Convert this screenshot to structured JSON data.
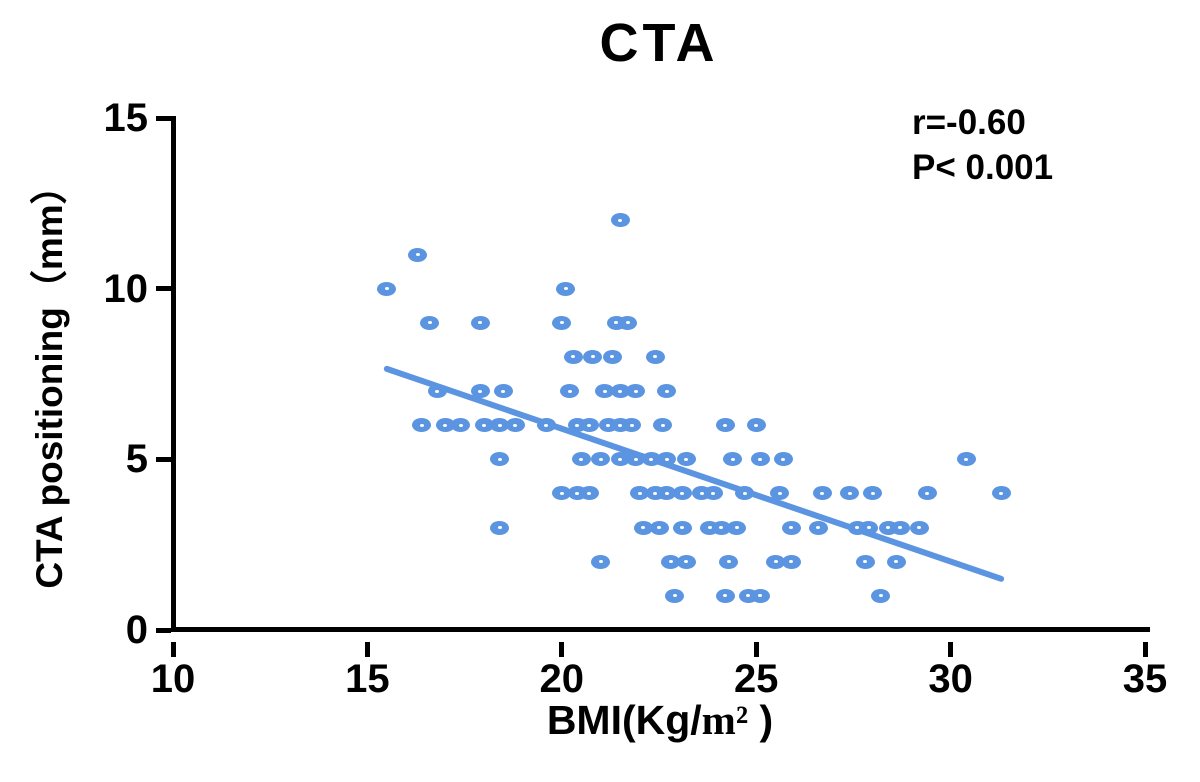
{
  "figure": {
    "background": "#ffffff"
  },
  "chart_data": {
    "type": "scatter",
    "title": "CTA",
    "xlabel": "BMI(Kg/m² )",
    "xlabel_parts": {
      "prefix": "BMI(Kg/",
      "unit": "m²",
      "suffix": " )"
    },
    "ylabel": "CTA positioning（mm）",
    "xlim": [
      10,
      35
    ],
    "ylim": [
      0,
      15
    ],
    "xticks": [
      10,
      15,
      20,
      25,
      30,
      35
    ],
    "yticks": [
      0,
      5,
      10,
      15
    ],
    "grid": false,
    "legend": "none",
    "annotation": [
      "r=-0.60",
      "P< 0.001"
    ],
    "correlation_r": -0.6,
    "p_value": "< 0.001",
    "colors": {
      "marker": "#5B94E0",
      "trend_line": "#5B94E0",
      "axis": "#000000",
      "text": "#000000"
    },
    "marker_style": "filled-ellipse-with-white-center-dot",
    "points": [
      [
        21.5,
        12
      ],
      [
        16.3,
        11
      ],
      [
        15.5,
        10
      ],
      [
        20.1,
        10
      ],
      [
        16.6,
        9
      ],
      [
        17.9,
        9
      ],
      [
        20.0,
        9
      ],
      [
        21.4,
        9
      ],
      [
        21.7,
        9
      ],
      [
        20.3,
        8
      ],
      [
        20.8,
        8
      ],
      [
        21.3,
        8
      ],
      [
        22.4,
        8
      ],
      [
        16.8,
        7
      ],
      [
        17.9,
        7
      ],
      [
        18.5,
        7
      ],
      [
        20.2,
        7
      ],
      [
        21.1,
        7
      ],
      [
        21.5,
        7
      ],
      [
        21.9,
        7
      ],
      [
        22.7,
        7
      ],
      [
        16.4,
        6
      ],
      [
        17.0,
        6
      ],
      [
        17.4,
        6
      ],
      [
        18.0,
        6
      ],
      [
        18.4,
        6
      ],
      [
        18.8,
        6
      ],
      [
        19.6,
        6
      ],
      [
        20.4,
        6
      ],
      [
        20.7,
        6
      ],
      [
        21.2,
        6
      ],
      [
        21.5,
        6
      ],
      [
        21.8,
        6
      ],
      [
        22.6,
        6
      ],
      [
        24.2,
        6
      ],
      [
        25.0,
        6
      ],
      [
        18.4,
        5
      ],
      [
        20.5,
        5
      ],
      [
        21.0,
        5
      ],
      [
        21.5,
        5
      ],
      [
        21.9,
        5
      ],
      [
        22.3,
        5
      ],
      [
        22.7,
        5
      ],
      [
        23.2,
        5
      ],
      [
        24.4,
        5
      ],
      [
        25.1,
        5
      ],
      [
        25.7,
        5
      ],
      [
        30.4,
        5
      ],
      [
        20.0,
        4
      ],
      [
        20.4,
        4
      ],
      [
        20.7,
        4
      ],
      [
        22.0,
        4
      ],
      [
        22.4,
        4
      ],
      [
        22.7,
        4
      ],
      [
        23.1,
        4
      ],
      [
        23.6,
        4
      ],
      [
        23.9,
        4
      ],
      [
        24.7,
        4
      ],
      [
        25.6,
        4
      ],
      [
        26.7,
        4
      ],
      [
        27.4,
        4
      ],
      [
        28.0,
        4
      ],
      [
        29.4,
        4
      ],
      [
        31.3,
        4
      ],
      [
        18.4,
        3
      ],
      [
        22.1,
        3
      ],
      [
        22.5,
        3
      ],
      [
        23.1,
        3
      ],
      [
        23.8,
        3
      ],
      [
        24.1,
        3
      ],
      [
        24.5,
        3
      ],
      [
        25.9,
        3
      ],
      [
        26.6,
        3
      ],
      [
        27.6,
        3
      ],
      [
        27.9,
        3
      ],
      [
        28.4,
        3
      ],
      [
        28.7,
        3
      ],
      [
        29.2,
        3
      ],
      [
        21.0,
        2
      ],
      [
        22.8,
        2
      ],
      [
        23.2,
        2
      ],
      [
        24.3,
        2
      ],
      [
        25.5,
        2
      ],
      [
        25.9,
        2
      ],
      [
        27.8,
        2
      ],
      [
        28.6,
        2
      ],
      [
        22.9,
        1
      ],
      [
        24.2,
        1
      ],
      [
        24.8,
        1
      ],
      [
        25.1,
        1
      ],
      [
        28.2,
        1
      ]
    ],
    "trend_line": {
      "x1": 15.5,
      "y1": 7.65,
      "x2": 31.3,
      "y2": 1.5
    }
  }
}
